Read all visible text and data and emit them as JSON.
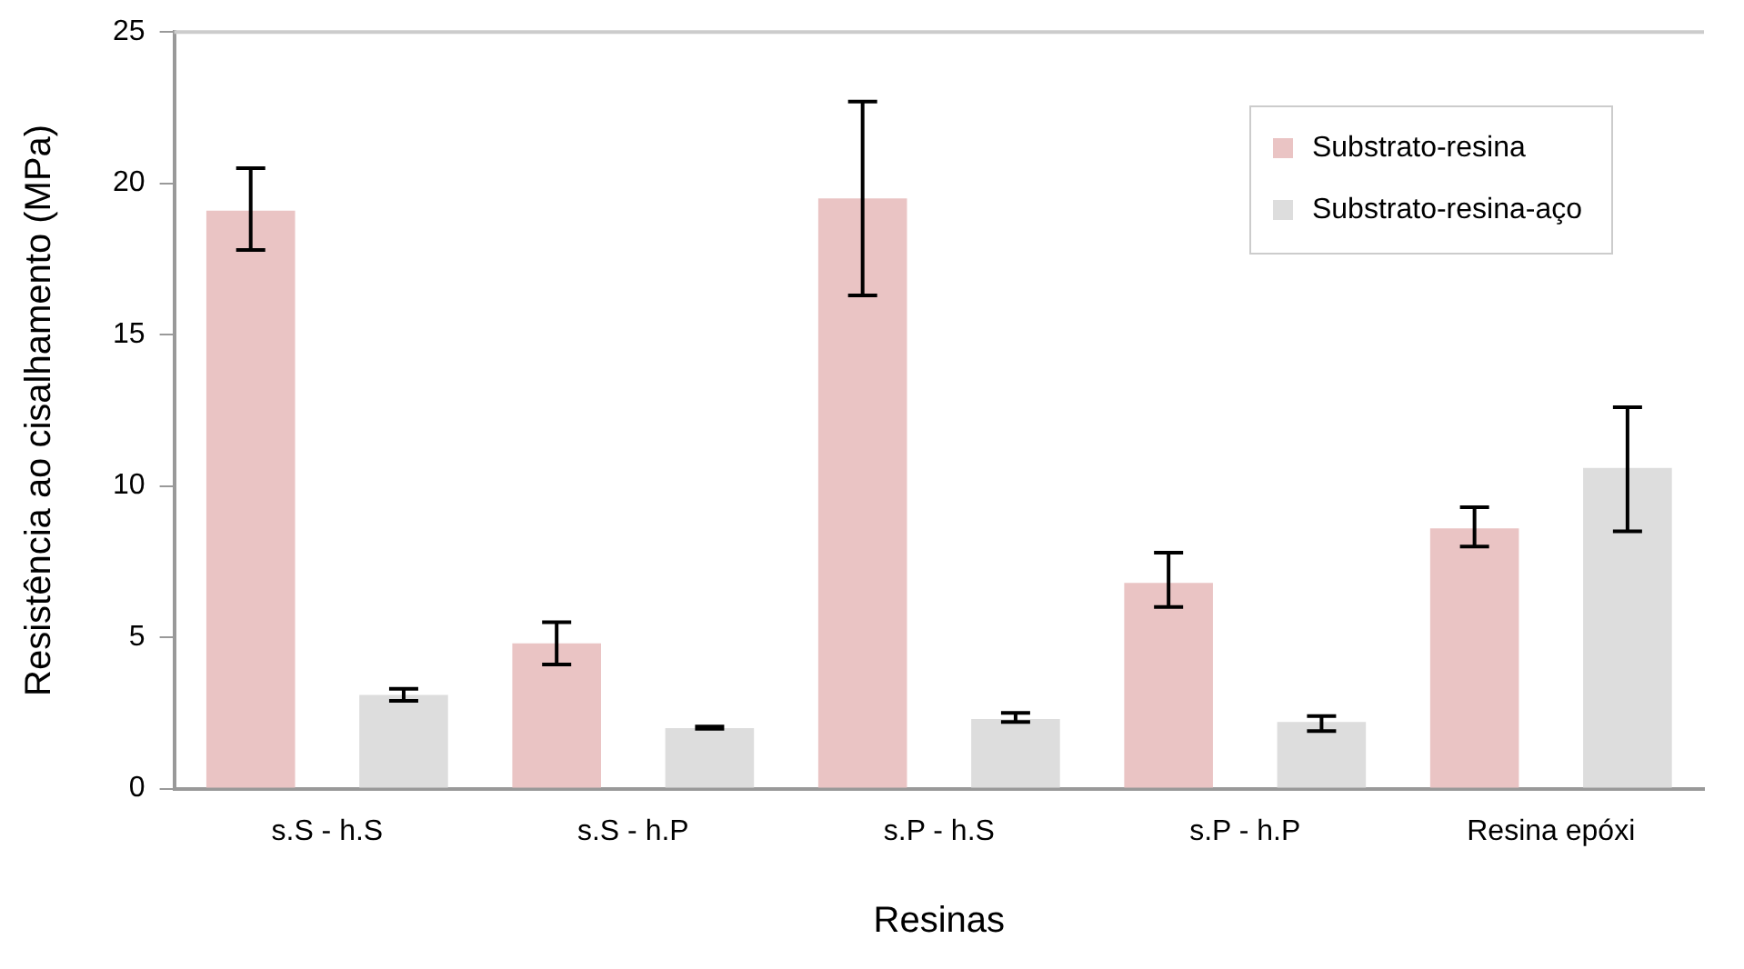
{
  "chart_data": {
    "type": "bar",
    "xlabel": "Resinas",
    "ylabel": "Resistência ao cisalhamento (MPa)",
    "categories": [
      "s.S - h.S",
      "s.S - h.P",
      "s.P - h.S",
      "s.P - h.P",
      "Resina epóxi"
    ],
    "series": [
      {
        "name": "Substrato-resina",
        "color": "#eac4c4",
        "values": [
          19.1,
          4.8,
          19.5,
          6.8,
          8.6
        ],
        "errors": [
          [
            17.8,
            20.5
          ],
          [
            4.1,
            5.5
          ],
          [
            16.3,
            22.7
          ],
          [
            6.0,
            7.8
          ],
          [
            8.0,
            9.3
          ]
        ]
      },
      {
        "name": "Substrato-resina-aço",
        "color": "#dddddd",
        "values": [
          3.1,
          2.0,
          2.3,
          2.2,
          10.6
        ],
        "errors": [
          [
            2.9,
            3.3
          ],
          [
            1.98,
            2.05
          ],
          [
            2.2,
            2.5
          ],
          [
            1.9,
            2.4
          ],
          [
            8.5,
            12.6
          ]
        ]
      }
    ],
    "ylim": [
      0,
      25
    ],
    "yticks": [
      0,
      5,
      10,
      15,
      20,
      25
    ],
    "grid": false,
    "legend": "top right"
  }
}
